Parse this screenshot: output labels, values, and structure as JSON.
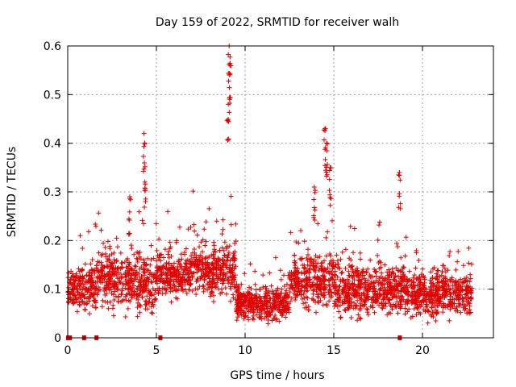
{
  "chart_data": {
    "type": "scatter",
    "title": "Day 159 of 2022, SRMTID for receiver walh",
    "xlabel": "GPS time / hours",
    "ylabel": "SRMTID / TECUs",
    "xlim": [
      0,
      24
    ],
    "ylim": [
      0,
      0.6
    ],
    "xticks": [
      "0",
      "5",
      "10",
      "15",
      "20"
    ],
    "yticks": [
      "0",
      "0.1",
      "0.2",
      "0.3",
      "0.4",
      "0.5",
      "0.6"
    ],
    "grid": true,
    "legend": "none",
    "marker": "plus",
    "color": "#e00000",
    "zero_value_times": [
      0.0,
      0.1,
      0.9,
      1.6,
      5.2,
      18.7
    ],
    "spikes": [
      {
        "x": 3.5,
        "y": 0.29
      },
      {
        "x": 4.3,
        "y": 0.42
      },
      {
        "x": 4.35,
        "y": 0.32
      },
      {
        "x": 9.1,
        "y": 0.6
      },
      {
        "x": 9.15,
        "y": 0.56
      },
      {
        "x": 9.05,
        "y": 0.48
      },
      {
        "x": 14.5,
        "y": 0.43
      },
      {
        "x": 14.6,
        "y": 0.4
      },
      {
        "x": 14.8,
        "y": 0.35
      },
      {
        "x": 18.7,
        "y": 0.34
      },
      {
        "x": 13.9,
        "y": 0.31
      }
    ],
    "segments": [
      {
        "x_start": 0.0,
        "x_end": 1.5,
        "mean": 0.1,
        "spread": 0.04
      },
      {
        "x_start": 1.5,
        "x_end": 3.0,
        "mean": 0.12,
        "spread": 0.05
      },
      {
        "x_start": 3.0,
        "x_end": 5.0,
        "mean": 0.11,
        "spread": 0.05
      },
      {
        "x_start": 5.0,
        "x_end": 7.0,
        "mean": 0.13,
        "spread": 0.04
      },
      {
        "x_start": 7.0,
        "x_end": 9.5,
        "mean": 0.14,
        "spread": 0.05
      },
      {
        "x_start": 9.5,
        "x_end": 12.5,
        "mean": 0.07,
        "spread": 0.03
      },
      {
        "x_start": 12.5,
        "x_end": 15.0,
        "mean": 0.12,
        "spread": 0.05
      },
      {
        "x_start": 15.0,
        "x_end": 19.0,
        "mean": 0.1,
        "spread": 0.05
      },
      {
        "x_start": 19.0,
        "x_end": 22.8,
        "mean": 0.09,
        "spread": 0.04
      }
    ]
  }
}
